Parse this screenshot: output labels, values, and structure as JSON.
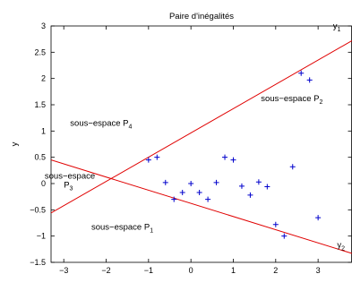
{
  "chart_data": {
    "type": "line",
    "title": "Paire d'inégalités",
    "xlabel": "",
    "ylabel": "y",
    "xlim": [
      -3.3,
      3.8
    ],
    "ylim": [
      -1.5,
      3
    ],
    "xticks": [
      -3,
      -2,
      -1,
      0,
      1,
      2,
      3
    ],
    "yticks": [
      -1.5,
      -1,
      -0.5,
      0,
      0.5,
      1,
      1.5,
      2,
      2.5,
      3
    ],
    "xtick_labels": [
      "−3",
      "−2",
      "−1",
      "0",
      "1",
      "2",
      "3"
    ],
    "ytick_labels": [
      "−1.5",
      "−1",
      "−0.5",
      "0",
      "0.5",
      "1",
      "1.5",
      "2",
      "2.5",
      "3"
    ],
    "grid": false,
    "line_color": "#e00000",
    "marker_color": "#0000cc",
    "series": [
      {
        "name": "y1",
        "kind": "line",
        "x": [
          -3.3,
          3.8
        ],
        "y": [
          -0.56,
          2.72
        ]
      },
      {
        "name": "y2",
        "kind": "line",
        "x": [
          -3.3,
          3.8
        ],
        "y": [
          0.45,
          -1.33
        ]
      },
      {
        "name": "",
        "kind": "scatter",
        "x": [
          -1.0,
          -0.8,
          -0.6,
          -0.4,
          -0.2,
          0.0,
          0.2,
          0.4,
          0.6,
          0.8,
          1.0,
          1.2,
          1.4,
          1.6,
          1.8,
          2.0,
          2.2,
          2.4,
          2.6,
          2.8,
          3.0
        ],
        "y": [
          0.45,
          0.5,
          0.02,
          -0.3,
          -0.17,
          0.0,
          -0.17,
          -0.3,
          0.02,
          0.5,
          0.45,
          -0.05,
          -0.22,
          0.03,
          -0.06,
          -0.78,
          -1.0,
          0.32,
          2.1,
          1.97,
          -0.65
        ]
      }
    ],
    "annotations": [
      {
        "name": "label-y1",
        "base": "y",
        "sub": "1",
        "x": 3.35,
        "y": 2.95
      },
      {
        "name": "label-y2",
        "base": "y",
        "sub": "2",
        "x": 3.45,
        "y": -1.22
      },
      {
        "name": "label-p2",
        "base": "sous−espace P",
        "sub": "2",
        "x": 1.65,
        "y": 1.57
      },
      {
        "name": "label-p4",
        "base": "sous−espace P",
        "sub": "4",
        "x": -2.85,
        "y": 1.1
      },
      {
        "name": "label-p3-line1",
        "base": "sous−espace",
        "sub": "",
        "x": -3.45,
        "y": 0.09
      },
      {
        "name": "label-p3-line2",
        "base": "P",
        "sub": "3",
        "x": -3.0,
        "y": -0.08
      },
      {
        "name": "label-p1",
        "base": "sous−espace P",
        "sub": "1",
        "x": -2.35,
        "y": -0.88
      }
    ]
  }
}
